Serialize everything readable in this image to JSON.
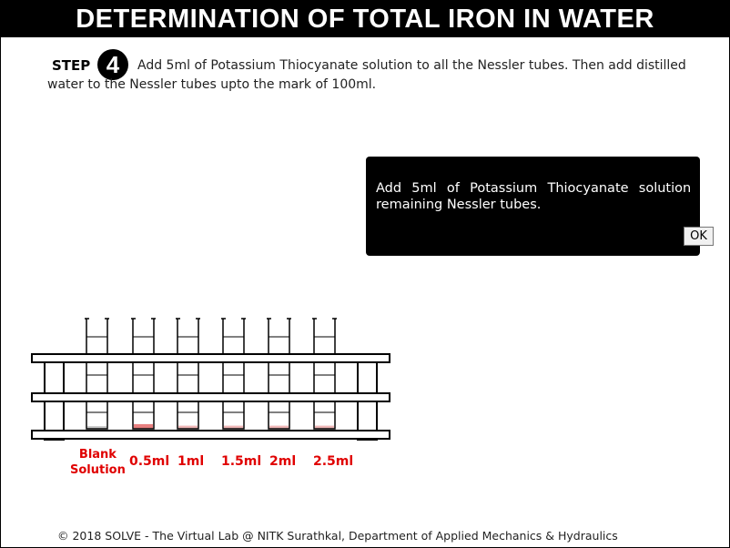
{
  "header": {
    "title": "DETERMINATION OF TOTAL IRON IN WATER"
  },
  "step": {
    "label": "STEP",
    "number": "4",
    "instruction_line1": "Add 5ml of Potassium Thiocyanate solution to all the Nessler tubes. Then add distilled",
    "instruction_line2": "water to the Nessler tubes upto the mark of 100ml."
  },
  "dialog": {
    "message": "Add 5ml of Potassium Thiocyanate solution to remaining Nessler tubes.",
    "ok_label": "OK"
  },
  "tubes": [
    {
      "label_line1": "Blank",
      "label_line2": "Solution",
      "liquid_color": "#cccccc",
      "liquid_level": 0.05
    },
    {
      "label": "0.5ml",
      "liquid_color": "#e88080",
      "liquid_level": 0.12
    },
    {
      "label": "1ml",
      "liquid_color": "#f0b8b8",
      "liquid_level": 0.08
    },
    {
      "label": "1.5ml",
      "liquid_color": "#f0b8b8",
      "liquid_level": 0.08
    },
    {
      "label": "2ml",
      "liquid_color": "#f0b8b8",
      "liquid_level": 0.08
    },
    {
      "label": "2.5ml",
      "liquid_color": "#f0b8b8",
      "liquid_level": 0.08
    }
  ],
  "footer": {
    "text": "© 2018 SOLVE - The Virtual Lab @ NITK Surathkal, Department of Applied Mechanics & Hydraulics"
  }
}
